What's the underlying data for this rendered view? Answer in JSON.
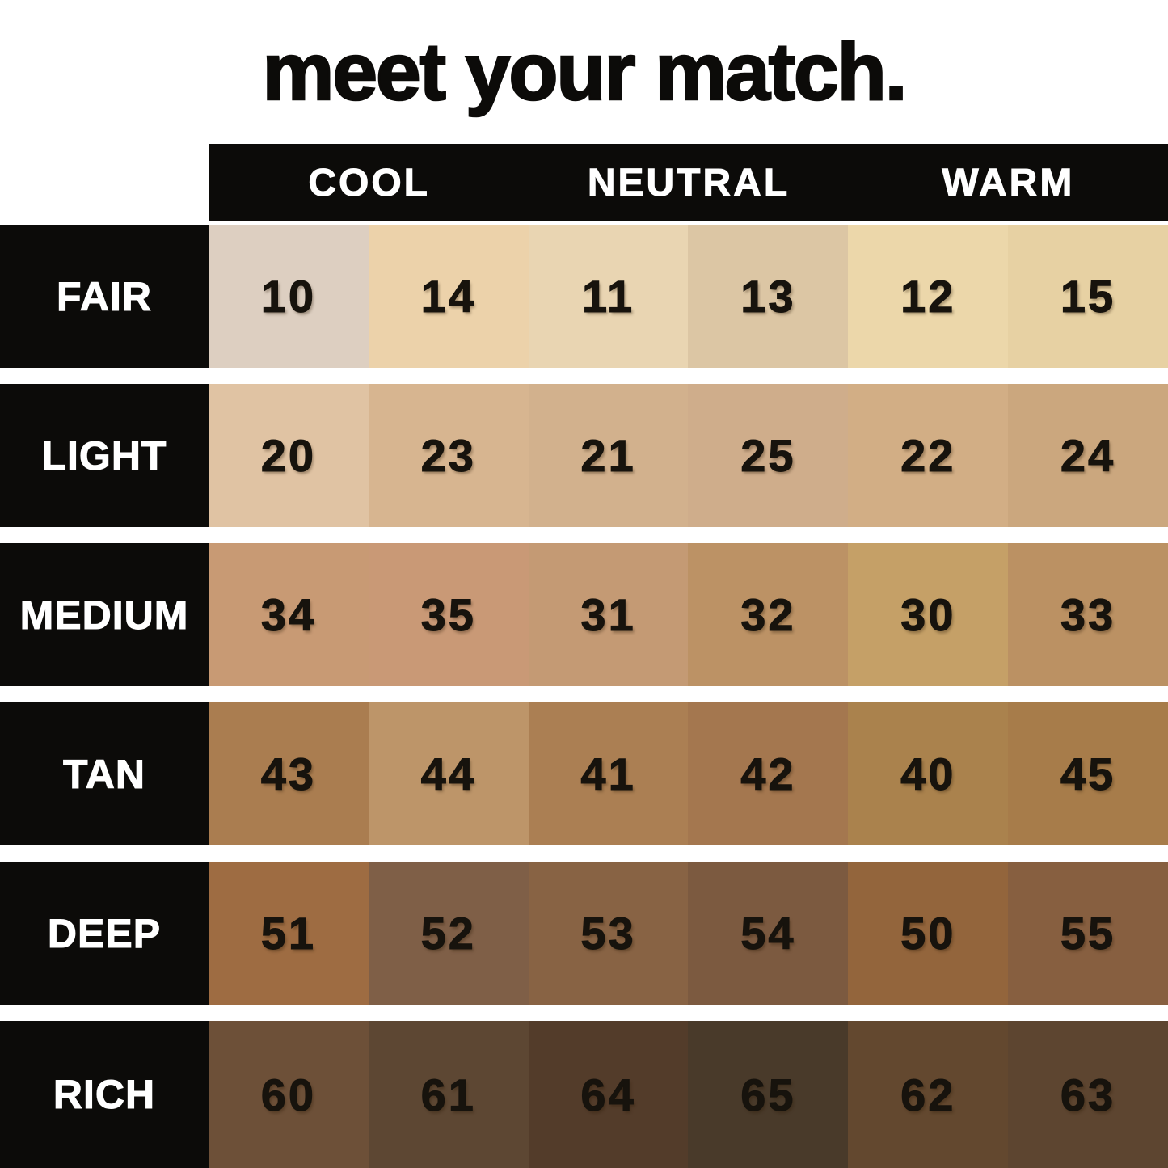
{
  "title": "meet your match.",
  "palette": {
    "background": "#ffffff",
    "block_black": "#0c0b09",
    "label_text": "#ffffff",
    "number_text": "#17130d"
  },
  "column_headers": [
    {
      "label": "COOL"
    },
    {
      "label": "NEUTRAL"
    },
    {
      "label": "WARM"
    }
  ],
  "rows": [
    {
      "label": "FAIR",
      "shades": [
        {
          "number": "10",
          "color": "#ddcfc1"
        },
        {
          "number": "14",
          "color": "#ecd2aa"
        },
        {
          "number": "11",
          "color": "#e9d5b2"
        },
        {
          "number": "13",
          "color": "#dcc6a4"
        },
        {
          "number": "12",
          "color": "#ecd7aa"
        },
        {
          "number": "15",
          "color": "#e7d1a3"
        }
      ]
    },
    {
      "label": "LIGHT",
      "shades": [
        {
          "number": "20",
          "color": "#e0c3a3"
        },
        {
          "number": "23",
          "color": "#d7b590"
        },
        {
          "number": "21",
          "color": "#d2b18d"
        },
        {
          "number": "25",
          "color": "#cfad8b"
        },
        {
          "number": "22",
          "color": "#d2ae85"
        },
        {
          "number": "24",
          "color": "#cba77e"
        }
      ]
    },
    {
      "label": "MEDIUM",
      "shades": [
        {
          "number": "34",
          "color": "#c89a74"
        },
        {
          "number": "35",
          "color": "#c99976"
        },
        {
          "number": "31",
          "color": "#c49a74"
        },
        {
          "number": "32",
          "color": "#bc9265"
        },
        {
          "number": "30",
          "color": "#c5a067"
        },
        {
          "number": "33",
          "color": "#bb9163"
        }
      ]
    },
    {
      "label": "TAN",
      "shades": [
        {
          "number": "43",
          "color": "#aa7d50"
        },
        {
          "number": "44",
          "color": "#bd9569"
        },
        {
          "number": "41",
          "color": "#ab7f53"
        },
        {
          "number": "42",
          "color": "#a4774f"
        },
        {
          "number": "40",
          "color": "#aa824d"
        },
        {
          "number": "45",
          "color": "#a77c4a"
        }
      ]
    },
    {
      "label": "DEEP",
      "shades": [
        {
          "number": "51",
          "color": "#9e6c42"
        },
        {
          "number": "52",
          "color": "#7f5f47"
        },
        {
          "number": "53",
          "color": "#886344"
        },
        {
          "number": "54",
          "color": "#7c5a40"
        },
        {
          "number": "50",
          "color": "#93653c"
        },
        {
          "number": "55",
          "color": "#875f40"
        }
      ]
    },
    {
      "label": "RICH",
      "shades": [
        {
          "number": "60",
          "color": "#6d5038"
        },
        {
          "number": "61",
          "color": "#5d4733"
        },
        {
          "number": "64",
          "color": "#533c2a"
        },
        {
          "number": "65",
          "color": "#493a2a"
        },
        {
          "number": "62",
          "color": "#63482f"
        },
        {
          "number": "63",
          "color": "#5d4530"
        }
      ]
    }
  ],
  "chart_data": {
    "type": "table",
    "title": "meet your match.",
    "column_groups": [
      "COOL",
      "NEUTRAL",
      "WARM"
    ],
    "columns_per_group": 2,
    "row_labels": [
      "FAIR",
      "LIGHT",
      "MEDIUM",
      "TAN",
      "DEEP",
      "RICH"
    ],
    "values": [
      [
        10,
        14,
        11,
        13,
        12,
        15
      ],
      [
        20,
        23,
        21,
        25,
        22,
        24
      ],
      [
        34,
        35,
        31,
        32,
        30,
        33
      ],
      [
        43,
        44,
        41,
        42,
        40,
        45
      ],
      [
        51,
        52,
        53,
        54,
        50,
        55
      ],
      [
        60,
        61,
        64,
        65,
        62,
        63
      ]
    ],
    "cell_colors": [
      [
        "#ddcfc1",
        "#ecd2aa",
        "#e9d5b2",
        "#dcc6a4",
        "#ecd7aa",
        "#e7d1a3"
      ],
      [
        "#e0c3a3",
        "#d7b590",
        "#d2b18d",
        "#cfad8b",
        "#d2ae85",
        "#cba77e"
      ],
      [
        "#c89a74",
        "#c99976",
        "#c49a74",
        "#bc9265",
        "#c5a067",
        "#bb9163"
      ],
      [
        "#aa7d50",
        "#bd9569",
        "#ab7f53",
        "#a4774f",
        "#aa824d",
        "#a77c4a"
      ],
      [
        "#9e6c42",
        "#7f5f47",
        "#886344",
        "#7c5a40",
        "#93653c",
        "#875f40"
      ],
      [
        "#6d5038",
        "#5d4733",
        "#533c2a",
        "#493a2a",
        "#63482f",
        "#5d4530"
      ]
    ]
  }
}
